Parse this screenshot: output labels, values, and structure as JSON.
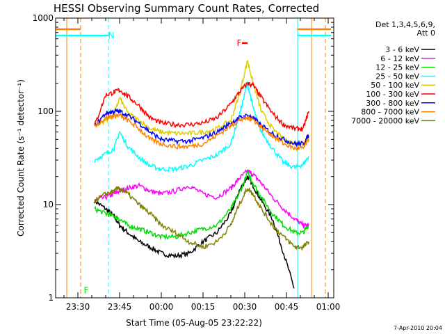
{
  "chart_data": {
    "type": "line",
    "title": "HESSI Observing Summary Count Rates, Corrected",
    "xlabel": "Start Time (05-Aug-05 23:22:22)",
    "ylabel": "Corrected Count Rate (s⁻¹ detector⁻¹)",
    "yscale": "log",
    "ylim": [
      1,
      1000
    ],
    "xlim": [
      "23:22",
      "01:02"
    ],
    "x_tick_labels": [
      "23:30",
      "23:45",
      "00:00",
      "00:15",
      "00:30",
      "00:45",
      "01:00"
    ],
    "y_tick_labels": [
      "1",
      "10",
      "100",
      "1000"
    ],
    "legend_title": [
      "Det 1,3,4,5,6,9,",
      "Att 0"
    ],
    "legend_position": "right",
    "x": [
      "23:26",
      "23:29",
      "23:33",
      "23:36",
      "23:40",
      "23:43",
      "23:45",
      "23:48",
      "23:52",
      "23:56",
      "00:00",
      "00:05",
      "00:10",
      "00:15",
      "00:20",
      "00:25",
      "00:28",
      "00:31",
      "00:33",
      "00:36",
      "00:40",
      "00:44",
      "00:48",
      "00:51",
      "00:53"
    ],
    "series": [
      {
        "name": "3 - 6 keV",
        "color": "#000000",
        "values": [
          null,
          null,
          null,
          11,
          9,
          7.5,
          6,
          5,
          4,
          3.5,
          3,
          2.8,
          3,
          4,
          5,
          8,
          14,
          20,
          16,
          11,
          7,
          3,
          1.2,
          null,
          null
        ]
      },
      {
        "name": "6 - 12 keV",
        "color": "#ff00ff",
        "values": [
          null,
          null,
          null,
          11,
          12,
          13,
          14,
          15,
          16,
          14,
          13,
          14,
          16,
          13,
          12,
          15,
          19,
          23,
          21,
          17,
          12,
          9,
          7,
          6,
          6
        ]
      },
      {
        "name": "12 - 25 keV",
        "color": "#00dd00",
        "values": [
          null,
          null,
          null,
          9,
          8,
          7.5,
          7,
          6,
          5.5,
          5,
          4.5,
          4.5,
          5,
          5.5,
          6,
          9,
          13,
          22,
          17,
          12,
          8,
          6,
          5,
          5,
          6
        ]
      },
      {
        "name": "25 - 50 keV",
        "color": "#00ffff",
        "values": [
          null,
          null,
          null,
          30,
          35,
          40,
          60,
          42,
          32,
          26,
          24,
          24,
          26,
          30,
          34,
          45,
          90,
          200,
          110,
          60,
          40,
          28,
          25,
          27,
          33
        ]
      },
      {
        "name": "50 - 100 keV",
        "color": "#ddcc00",
        "values": [
          null,
          null,
          null,
          70,
          80,
          90,
          140,
          95,
          80,
          65,
          60,
          58,
          58,
          60,
          65,
          80,
          150,
          350,
          200,
          100,
          65,
          50,
          45,
          45,
          55
        ]
      },
      {
        "name": "100 - 300 keV",
        "color": "#ff0000",
        "values": [
          null,
          null,
          null,
          70,
          150,
          160,
          170,
          145,
          115,
          85,
          75,
          72,
          72,
          75,
          85,
          120,
          160,
          200,
          190,
          140,
          95,
          72,
          65,
          65,
          100
        ]
      },
      {
        "name": "300 - 800 keV",
        "color": "#0000ff",
        "values": [
          null,
          null,
          null,
          70,
          95,
          100,
          100,
          90,
          75,
          60,
          50,
          48,
          48,
          52,
          60,
          75,
          85,
          90,
          85,
          70,
          58,
          50,
          45,
          45,
          55
        ]
      },
      {
        "name": "800 - 7000 keV",
        "color": "#ff8000",
        "values": [
          null,
          null,
          null,
          70,
          85,
          90,
          90,
          80,
          65,
          50,
          45,
          42,
          42,
          45,
          55,
          70,
          80,
          85,
          82,
          68,
          55,
          45,
          40,
          40,
          50
        ]
      },
      {
        "name": "7000 - 20000 keV",
        "color": "#808000",
        "values": [
          null,
          null,
          null,
          11,
          13,
          14,
          15,
          13,
          10,
          8,
          6,
          5,
          4,
          3.5,
          4,
          6,
          10,
          15,
          13,
          9,
          6,
          4.5,
          3.5,
          3.5,
          4
        ]
      }
    ],
    "annotations": [
      {
        "text": "N",
        "x": "23:42",
        "y": 650,
        "color": "#00ffff"
      },
      {
        "text": "F",
        "x": "00:28",
        "y": 540,
        "color": "#ff0000"
      },
      {
        "text": "F",
        "x": "23:33",
        "y": 1.2,
        "color": "#00dd00"
      }
    ],
    "vertical_lines": [
      {
        "x": "23:26",
        "color": "#ff8000",
        "style": "solid"
      },
      {
        "x": "23:31",
        "color": "#ff8000",
        "style": "dashed"
      },
      {
        "x": "23:41",
        "color": "#00ffff",
        "style": "dashed"
      },
      {
        "x": "00:49",
        "color": "#00ffff",
        "style": "solid"
      },
      {
        "x": "00:54",
        "color": "#ff8000",
        "style": "solid"
      },
      {
        "x": "00:59",
        "color": "#ff8000",
        "style": "dashed"
      }
    ],
    "segments": [
      {
        "color": "#ff8000",
        "x": [
          "23:22",
          "23:31"
        ],
        "y": 760
      },
      {
        "color": "#00ffff",
        "x": [
          "23:22",
          "23:41"
        ],
        "y": 650
      },
      {
        "color": "#ff8000",
        "x": [
          "00:49",
          "01:01"
        ],
        "y": 760
      },
      {
        "color": "#00ffff",
        "x": [
          "00:49",
          "01:01"
        ],
        "y": 650
      },
      {
        "color": "#ff0000",
        "x": [
          "00:29",
          "00:31"
        ],
        "y": 540
      }
    ]
  },
  "footer": {
    "date": "7-Apr-2010 20:04"
  }
}
